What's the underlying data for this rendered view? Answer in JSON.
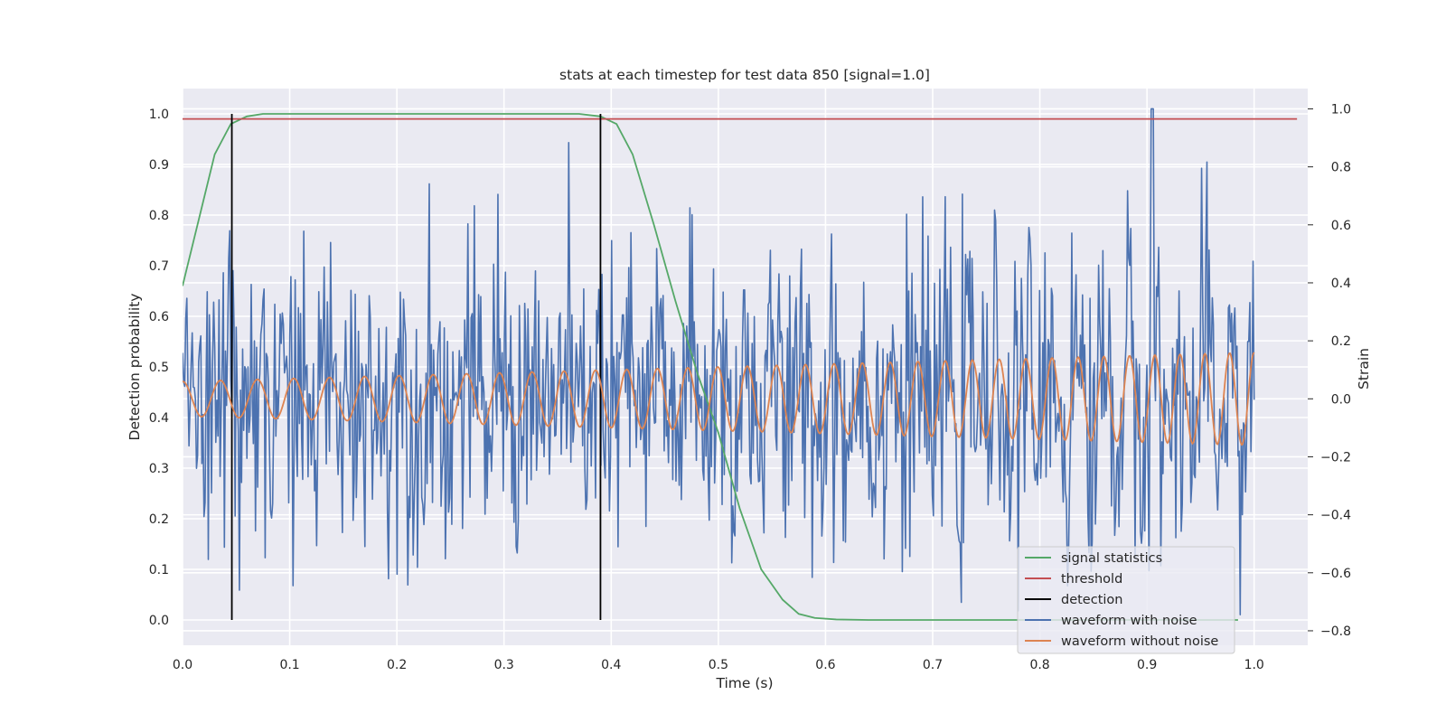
{
  "chart_data": {
    "type": "line",
    "title": "stats at each timestep for test data 850 [signal=1.0]",
    "xlabel": "Time (s)",
    "ylabel_left": "Detection probability",
    "ylabel_right": "Strain",
    "xlim": [
      0.0,
      1.05
    ],
    "ylim_left": [
      -0.05,
      1.05
    ],
    "ylim_right": [
      -0.85,
      1.07
    ],
    "xticks": [
      "0.0",
      "0.1",
      "0.2",
      "0.3",
      "0.4",
      "0.5",
      "0.6",
      "0.7",
      "0.8",
      "0.9",
      "1.0"
    ],
    "yticks_left": [
      "0.0",
      "0.1",
      "0.2",
      "0.3",
      "0.4",
      "0.5",
      "0.6",
      "0.7",
      "0.8",
      "0.9",
      "1.0"
    ],
    "yticks_right": [
      "−0.8",
      "−0.6",
      "−0.4",
      "−0.2",
      "0.0",
      "0.2",
      "0.4",
      "0.6",
      "0.8",
      "1.0"
    ],
    "grid": true,
    "legend_position": "lower-right",
    "series": [
      {
        "name": "signal statistics",
        "axis": "left",
        "color": "#55a868",
        "x": [
          0.0,
          0.015,
          0.03,
          0.045,
          0.06,
          0.075,
          0.09,
          0.12,
          0.15,
          0.2,
          0.25,
          0.3,
          0.35,
          0.37,
          0.39,
          0.405,
          0.42,
          0.44,
          0.46,
          0.48,
          0.5,
          0.52,
          0.54,
          0.56,
          0.575,
          0.59,
          0.61,
          0.64,
          0.7,
          0.8,
          0.9,
          0.985
        ],
        "y": [
          0.66,
          0.79,
          0.92,
          0.98,
          0.995,
          1.0,
          1.0,
          1.0,
          1.0,
          1.0,
          1.0,
          1.0,
          1.0,
          1.0,
          0.995,
          0.98,
          0.92,
          0.78,
          0.63,
          0.49,
          0.37,
          0.22,
          0.1,
          0.04,
          0.012,
          0.004,
          0.001,
          0.0,
          0.0,
          0.0,
          0.0,
          0.0
        ]
      },
      {
        "name": "threshold",
        "axis": "left",
        "color": "#c44e52",
        "x": [
          0.0,
          1.04
        ],
        "y": [
          0.99,
          0.99
        ]
      },
      {
        "name": "detection",
        "axis": "left",
        "color": "#000000",
        "x": [
          0.046,
          0.39
        ],
        "y": [
          0.0,
          1.0
        ]
      },
      {
        "name": "waveform with noise",
        "axis": "right",
        "color": "#4c72b0",
        "x_range": [
          0.0,
          1.0
        ],
        "n_points": 1000,
        "noise_std": 0.25,
        "y_range": [
          -0.79,
          1.0
        ]
      },
      {
        "name": "waveform without noise",
        "axis": "right",
        "color": "#dd8452",
        "x_range": [
          0.0,
          1.0
        ],
        "amplitude_start": 0.06,
        "amplitude_end": 0.16,
        "cycles": 36
      }
    ]
  }
}
